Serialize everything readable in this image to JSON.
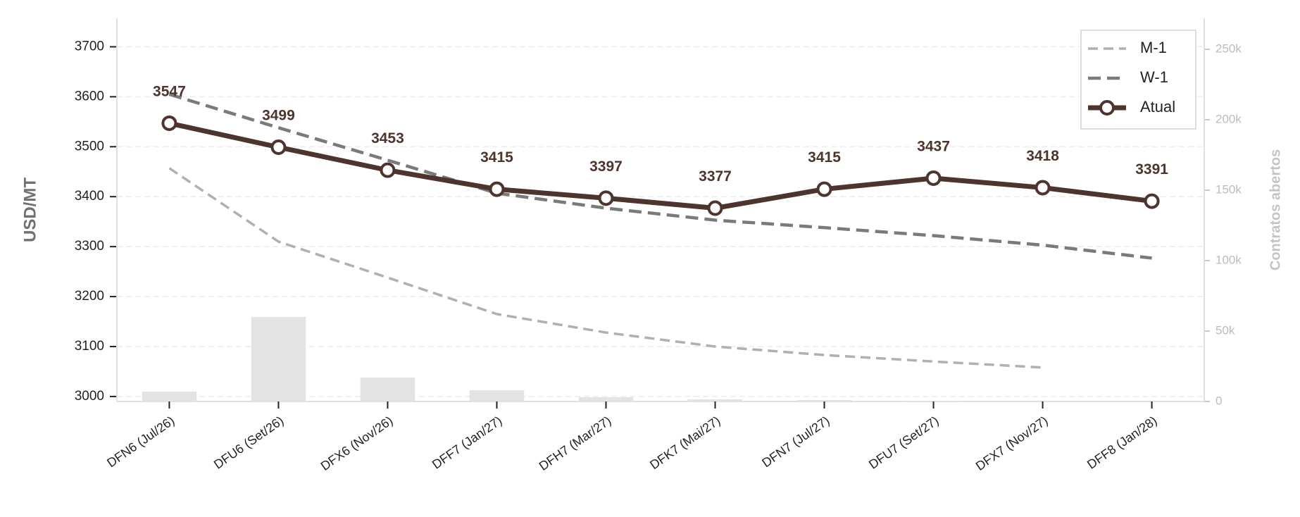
{
  "chart_data": {
    "type": "line",
    "y_label": "USD/MT",
    "y2_label": "Contratos abertos",
    "categories": [
      "DFN6 (Jul/26)",
      "DFU6 (Set/26)",
      "DFX6 (Nov/26)",
      "DFF7 (Jan/27)",
      "DFH7 (Mar/27)",
      "DFK7 (Mai/27)",
      "DFN7 (Jul/27)",
      "DFU7 (Set/27)",
      "DFX7 (Nov/27)",
      "DFF8 (Jan/28)"
    ],
    "series": [
      {
        "name": "M-1",
        "color": "#b0b0b0",
        "style": "dashed",
        "values": [
          3457,
          3310,
          3238,
          3165,
          3128,
          3100,
          3083,
          3070,
          3058,
          null
        ]
      },
      {
        "name": "W-1",
        "color": "#7a7a7a",
        "style": "dashed",
        "values": [
          3605,
          3538,
          3473,
          3407,
          3377,
          3353,
          3338,
          3322,
          3303,
          3277
        ]
      },
      {
        "name": "Atual",
        "color": "#4e342e",
        "style": "solid",
        "markers": true,
        "data_labels": true,
        "values": [
          3547,
          3499,
          3453,
          3415,
          3397,
          3377,
          3415,
          3437,
          3418,
          3391
        ]
      },
      {
        "type": "bar",
        "axis": "y2",
        "color": "#e3e3e3",
        "values": [
          7000,
          60000,
          17000,
          8000,
          3000,
          1500,
          1000,
          500,
          0,
          0
        ]
      }
    ],
    "ylim": [
      2990,
      3757
    ],
    "yticks": [
      3000,
      3100,
      3200,
      3300,
      3400,
      3500,
      3600,
      3700
    ],
    "y2lim": [
      0,
      272000
    ],
    "y2ticks": [
      {
        "value": 0,
        "label": "0"
      },
      {
        "value": 50000,
        "label": "50k"
      },
      {
        "value": 100000,
        "label": "100k"
      },
      {
        "value": 150000,
        "label": "150k"
      },
      {
        "value": 200000,
        "label": "200k"
      },
      {
        "value": 250000,
        "label": "250k"
      }
    ],
    "grid": true,
    "legend": "upper right"
  }
}
